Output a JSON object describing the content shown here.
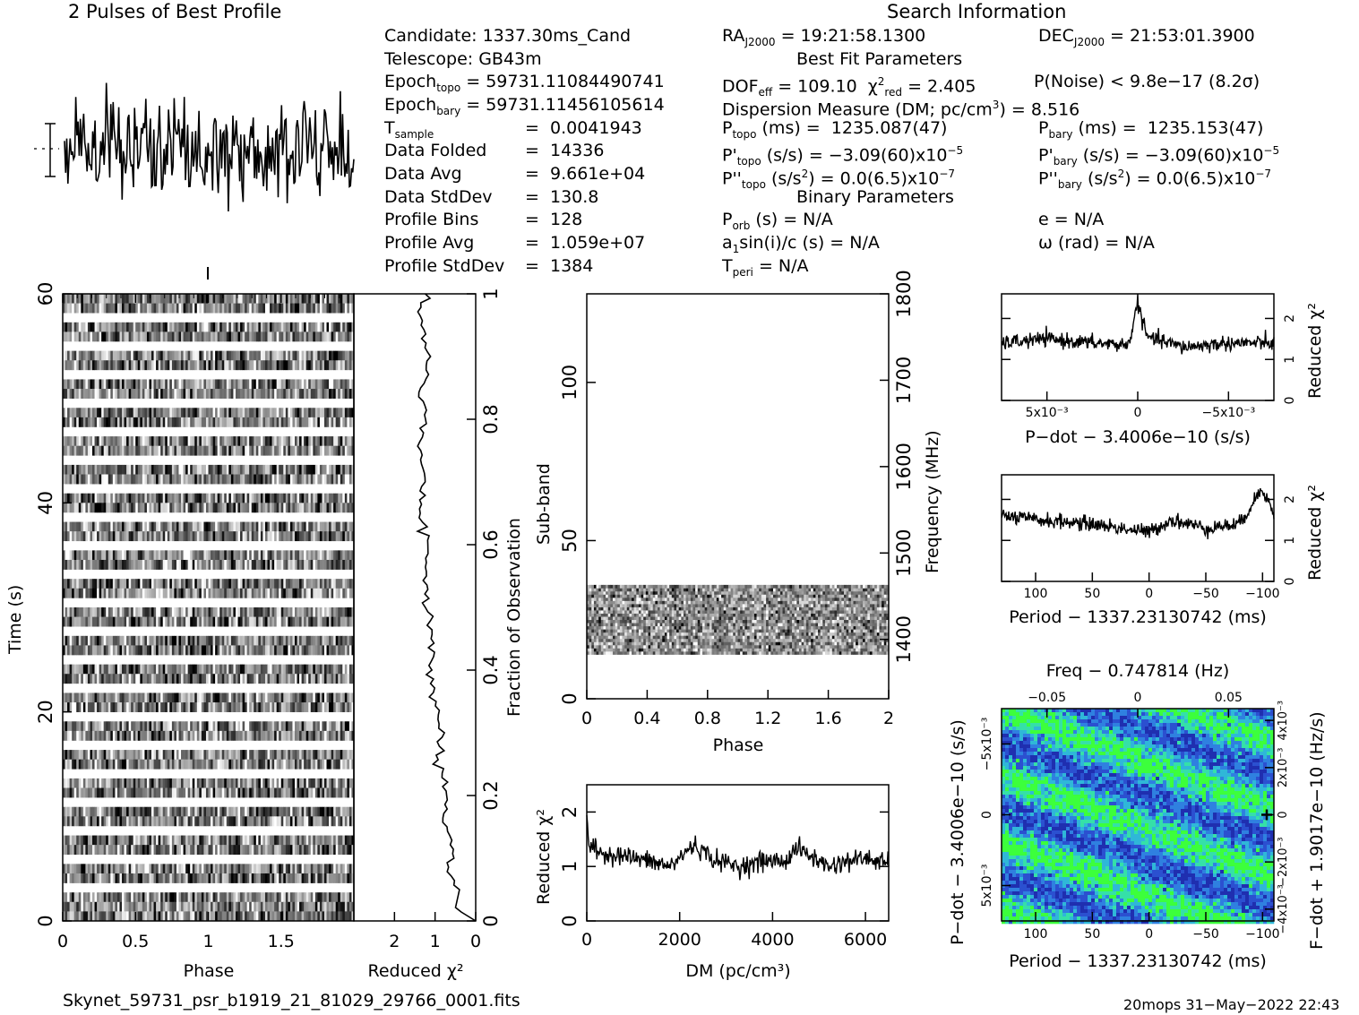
{
  "header": {
    "profile_title": "2 Pulses of Best Profile",
    "search_title": "Search Information",
    "best_fit_title": "Best Fit Parameters",
    "binary_title": "Binary Parameters",
    "candidate": "Candidate:  1337.30ms_Cand",
    "telescope": "Telescope:  GB43m",
    "epoch_topo_value": "= 59731.11084490741",
    "epoch_bary_value": "= 59731.11456105614",
    "ra_value": "= 19:21:58.1300",
    "dec_value": "= 21:53:01.3900"
  },
  "stats": [
    {
      "label": "sample",
      "value": "0.0041943"
    },
    {
      "label": "Data Folded",
      "value": "14336"
    },
    {
      "label": "Data Avg",
      "value": "9.661e+04"
    },
    {
      "label": "Data StdDev",
      "value": "130.8"
    },
    {
      "label": "Profile Bins",
      "value": "128"
    },
    {
      "label": "Profile Avg",
      "value": "1.059e+07"
    },
    {
      "label": "Profile StdDev",
      "value": "1384"
    }
  ],
  "fit": {
    "dof": "= 109.10",
    "chi_red": "= 2.405",
    "p_noise": "P(Noise) < 9.8e−17  (8.2σ)",
    "dm_value": "= 8.516",
    "p_topo": "1235.087(47)",
    "p_bary": "1235.153(47)",
    "pd_topo": "= −3.09(60)x10",
    "pd_bary": "= −3.09(60)x10",
    "pd_exp": "−5",
    "pdd_topo": "= 0.0(6.5)x10",
    "pdd_bary": "= 0.0(6.5)x10",
    "pdd_exp": "−7",
    "porb": "= N/A",
    "e": "e = N/A",
    "asini": "= N/A",
    "omega": "ω (rad) = N/A",
    "tperi": "= N/A"
  },
  "footer": {
    "filename": "Skynet_59731_psr_b1919_21_81029_29766_0001.fits",
    "stamp": "20mops 31−May−2022 22:43"
  },
  "colors": {
    "ink": "#000000",
    "heat_low": "#1f2fb0",
    "heat_mid": "#2fb7d8",
    "heat_high": "#3cff3c"
  },
  "chart_data": [
    {
      "id": "profile",
      "type": "line",
      "title": "2 Pulses of Best Profile",
      "x": "phase 0-2 (256 bins, 2 pulses)",
      "shape": "noise-like, no clear pulse"
    },
    {
      "id": "time_phase",
      "type": "heatmap",
      "xlabel": "Phase",
      "ylabel": "Time (s)",
      "xlim": [
        0,
        2
      ],
      "ylim": [
        0,
        60
      ],
      "x_ticks": [
        "0",
        "0.5",
        "1",
        "1.5"
      ],
      "y_ticks": [
        "0",
        "20",
        "40",
        "60"
      ],
      "gap_count": 21
    },
    {
      "id": "chi_vs_fraction",
      "type": "line",
      "xlabel": "Reduced χ²",
      "ylabel2": "Fraction of Observation",
      "xlim": [
        3,
        0
      ],
      "ylim": [
        0,
        1
      ],
      "x_ticks": [
        "2",
        "1",
        "0"
      ],
      "y_ticks": [
        "0",
        "0.2",
        "0.4",
        "0.6",
        "0.8",
        "1"
      ],
      "fraction": [
        0,
        0.02,
        0.05,
        0.08,
        0.1,
        0.13,
        0.16,
        0.2,
        0.25,
        0.3,
        0.35,
        0.4,
        0.45,
        0.5,
        0.55,
        0.6,
        0.65,
        0.7,
        0.75,
        0.8,
        0.85,
        0.9,
        0.95,
        1.0
      ],
      "reduced_chi2": [
        0.0,
        0.5,
        0.4,
        0.7,
        0.65,
        0.6,
        0.8,
        0.7,
        0.9,
        0.85,
        1.0,
        1.1,
        1.05,
        1.2,
        1.2,
        1.25,
        1.3,
        1.3,
        1.35,
        1.25,
        1.3,
        1.2,
        1.35,
        1.25
      ]
    },
    {
      "id": "subband_phase",
      "type": "heatmap",
      "xlabel": "Phase",
      "ylabel": "Sub-band",
      "ylabel2": "Frequency (MHz)",
      "xlim": [
        0,
        2
      ],
      "ylim": [
        0,
        128
      ],
      "x_ticks": [
        "0",
        "0.4",
        "0.8",
        "1.2",
        "1.6",
        "2"
      ],
      "y_ticks": [
        "0",
        "50",
        "100"
      ],
      "freq_ticks": [
        "1400",
        "1500",
        "1600",
        "1700",
        "1800"
      ],
      "occupied_subbands": [
        14,
        35
      ]
    },
    {
      "id": "dm_curve",
      "type": "line",
      "xlabel": "DM (pc/cm³)",
      "ylabel": "Reduced χ²",
      "xlim": [
        0,
        6500
      ],
      "ylim": [
        0,
        2.5
      ],
      "x_ticks": [
        "0",
        "2000",
        "4000",
        "6000"
      ],
      "y_ticks": [
        "0",
        "1",
        "2"
      ],
      "dm": [
        0,
        50,
        300,
        800,
        1300,
        1800,
        2300,
        2800,
        3300,
        3800,
        4300,
        4500,
        4800,
        5200,
        5600,
        6000,
        6500
      ],
      "reduced_chi2": [
        2.0,
        1.35,
        1.25,
        1.2,
        1.1,
        1.0,
        1.4,
        1.1,
        1.0,
        1.1,
        1.1,
        1.35,
        1.2,
        1.0,
        1.1,
        1.15,
        1.05
      ]
    },
    {
      "id": "pdot_curve",
      "type": "line",
      "xlabel": "P−dot − 3.4006e−10 (s/s)",
      "ylabel": "Reduced χ²",
      "xlim": [
        0.0075,
        -0.0075
      ],
      "ylim": [
        0,
        2.6
      ],
      "x_ticks": [
        "5x10⁻³",
        "0",
        "−5x10⁻³"
      ],
      "y_ticks": [
        "0",
        "1",
        "2"
      ],
      "pdot": [
        0.0075,
        0.005,
        0.0025,
        0.0005,
        0,
        -0.0005,
        -0.0025,
        -0.005,
        -0.0075
      ],
      "reduced_chi2": [
        1.4,
        1.5,
        1.4,
        1.35,
        2.4,
        1.55,
        1.3,
        1.4,
        1.4
      ]
    },
    {
      "id": "period_curve",
      "type": "line",
      "xlabel": "Period − 1337.23130742 (ms)",
      "ylabel": "Reduced χ²",
      "xlim": [
        130,
        -110
      ],
      "ylim": [
        0,
        2.6
      ],
      "x_ticks": [
        "100",
        "50",
        "0",
        "−50",
        "−100"
      ],
      "y_ticks": [
        "0",
        "1",
        "2"
      ],
      "period": [
        130,
        100,
        50,
        0,
        -20,
        -50,
        -80,
        -100,
        -110
      ],
      "reduced_chi2": [
        1.6,
        1.5,
        1.4,
        1.2,
        1.5,
        1.3,
        1.4,
        2.3,
        1.6
      ]
    },
    {
      "id": "p_pdot_plane",
      "type": "heatmap",
      "xlabel": "Period − 1337.23130742 (ms)",
      "ylabel": "P−dot − 3.4006e−10 (s/s)",
      "x2label": "Freq − 0.747814 (Hz)",
      "y2label": "F−dot + 1.9017e−10 (Hz/s)",
      "x_ticks": [
        "100",
        "50",
        "0",
        "−50",
        "−100"
      ],
      "x2_ticks": [
        "−0.05",
        "0",
        "0.05"
      ],
      "y_ticks": [
        "−5x10⁻³",
        "0",
        "5x10⁻³"
      ],
      "y2_ticks": [
        "4x10⁻³",
        "2x10⁻³",
        "0",
        "−2x10⁻³",
        "−4x10⁻³"
      ]
    }
  ]
}
